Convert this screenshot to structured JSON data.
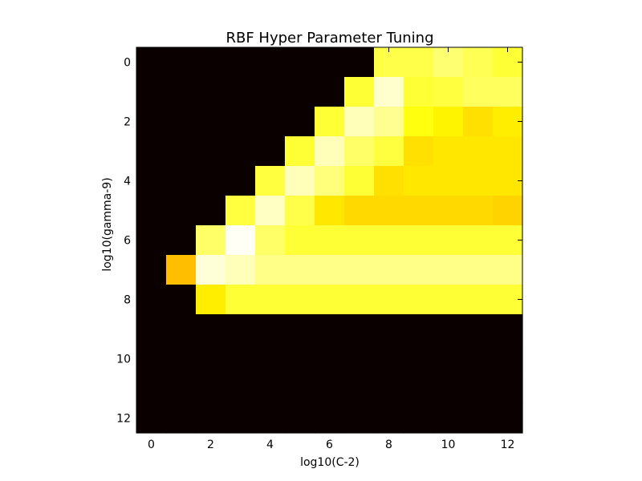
{
  "chart_data": {
    "type": "heatmap",
    "title": "RBF Hyper Parameter Tuning",
    "xlabel": "log10(C-2)",
    "ylabel": "log10(gamma-9)",
    "x": [
      0,
      1,
      2,
      3,
      4,
      5,
      6,
      7,
      8,
      9,
      10,
      11,
      12
    ],
    "y": [
      0,
      1,
      2,
      3,
      4,
      5,
      6,
      7,
      8,
      9,
      10,
      11,
      12
    ],
    "xticks": [
      0,
      2,
      4,
      6,
      8,
      10,
      12
    ],
    "yticks": [
      0,
      2,
      4,
      6,
      8,
      10,
      12
    ],
    "colormap": "hot",
    "value_range": [
      0,
      1
    ],
    "values": [
      [
        0.0,
        0.0,
        0.0,
        0.0,
        0.0,
        0.0,
        0.0,
        0.0,
        0.82,
        0.82,
        0.86,
        0.83,
        0.8
      ],
      [
        0.0,
        0.0,
        0.0,
        0.0,
        0.0,
        0.0,
        0.0,
        0.8,
        0.95,
        0.8,
        0.81,
        0.84,
        0.84
      ],
      [
        0.0,
        0.0,
        0.0,
        0.0,
        0.0,
        0.0,
        0.8,
        0.93,
        0.89,
        0.76,
        0.73,
        0.7,
        0.72
      ],
      [
        0.0,
        0.0,
        0.0,
        0.0,
        0.0,
        0.8,
        0.93,
        0.85,
        0.81,
        0.7,
        0.71,
        0.71,
        0.71
      ],
      [
        0.0,
        0.0,
        0.0,
        0.0,
        0.81,
        0.93,
        0.87,
        0.8,
        0.7,
        0.71,
        0.71,
        0.71,
        0.71
      ],
      [
        0.0,
        0.0,
        0.0,
        0.81,
        0.94,
        0.82,
        0.71,
        0.69,
        0.69,
        0.69,
        0.69,
        0.69,
        0.68
      ],
      [
        0.0,
        0.0,
        0.85,
        0.99,
        0.85,
        0.8,
        0.8,
        0.8,
        0.8,
        0.8,
        0.8,
        0.8,
        0.8
      ],
      [
        0.0,
        0.65,
        0.96,
        0.93,
        0.88,
        0.88,
        0.88,
        0.88,
        0.88,
        0.88,
        0.88,
        0.88,
        0.88
      ],
      [
        0.0,
        0.0,
        0.72,
        0.8,
        0.8,
        0.8,
        0.8,
        0.8,
        0.8,
        0.8,
        0.8,
        0.8,
        0.8
      ],
      [
        0.0,
        0.0,
        0.0,
        0.0,
        0.0,
        0.0,
        0.0,
        0.0,
        0.0,
        0.0,
        0.0,
        0.0,
        0.0
      ],
      [
        0.0,
        0.0,
        0.0,
        0.0,
        0.0,
        0.0,
        0.0,
        0.0,
        0.0,
        0.0,
        0.0,
        0.0,
        0.0
      ],
      [
        0.0,
        0.0,
        0.0,
        0.0,
        0.0,
        0.0,
        0.0,
        0.0,
        0.0,
        0.0,
        0.0,
        0.0,
        0.0
      ],
      [
        0.0,
        0.0,
        0.0,
        0.0,
        0.0,
        0.0,
        0.0,
        0.0,
        0.0,
        0.0,
        0.0,
        0.0,
        0.0
      ]
    ]
  }
}
